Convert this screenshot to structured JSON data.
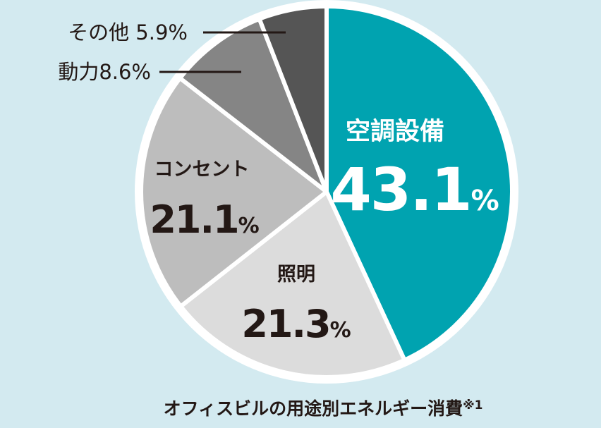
{
  "chart_data": {
    "type": "pie",
    "slices": [
      {
        "label": "空調設備",
        "value": 43.1,
        "value_text": "43.1",
        "unit": "%",
        "color": "#00a3b0",
        "label_color": "#ffffff",
        "label_style": "inside-large"
      },
      {
        "label": "照明",
        "value": 21.3,
        "value_text": "21.3",
        "unit": "%",
        "color": "#dcdcdc",
        "label_color": "#231815",
        "label_style": "inside"
      },
      {
        "label": "コンセント",
        "value": 21.1,
        "value_text": "21.1",
        "unit": "%",
        "color": "#bdbdbd",
        "label_color": "#231815",
        "label_style": "inside"
      },
      {
        "label": "動力",
        "value": 8.6,
        "value_text": "8.6",
        "unit": "%",
        "color": "#858585",
        "label_color": "#231815",
        "label_style": "leader",
        "ext_text": "動力8.6%"
      },
      {
        "label": "その他",
        "value": 5.9,
        "value_text": "5.9",
        "unit": "%",
        "color": "#555555",
        "label_color": "#231815",
        "label_style": "leader",
        "ext_text": "その他 5.9%"
      }
    ],
    "start": "12 o'clock",
    "direction": "clockwise",
    "legend": "none",
    "caption": "オフィスビルの用途別エネルギー消費",
    "caption_note": "※1"
  },
  "colors": {
    "background": "#d3eaf0",
    "separator": "#ffffff",
    "text": "#231815"
  }
}
